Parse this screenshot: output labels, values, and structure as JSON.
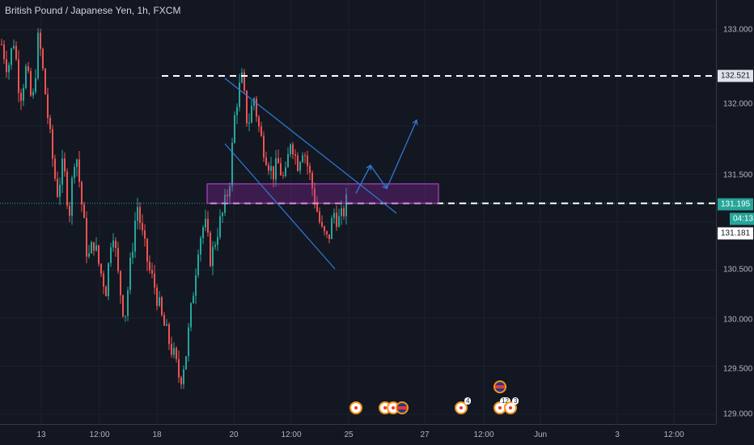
{
  "chart_title": "British Pound / Japanese Yen, 1h, FXCM",
  "colors": {
    "up": "#26a69a",
    "down": "#ef5350",
    "lines": "#2962ff",
    "box": "#9c27b0",
    "bg": "#131722"
  },
  "price_axis_labels": [
    "133.000",
    "132.521",
    "132.000",
    "131.500",
    "131.195",
    "131.181",
    "130.500",
    "130.000",
    "129.500",
    "129.000"
  ],
  "price_tags": {
    "level": "132.521",
    "current": "131.195",
    "timer": "04:13",
    "bid": "131.181"
  },
  "time_axis_labels": [
    "13",
    "12:00",
    "18",
    "20",
    "12:00",
    "25",
    "27",
    "12:00",
    "Jun",
    "3",
    "12:00"
  ],
  "event_counts": [
    "4",
    "12",
    "3"
  ],
  "chart_data": {
    "type": "candlestick",
    "symbol": "British Pound / Japanese Yen",
    "interval": "1h",
    "source": "FXCM",
    "y_range": [
      129.0,
      133.15
    ],
    "y_ticks": [
      133.0,
      132.5,
      132.0,
      131.5,
      131.0,
      130.5,
      130.0,
      129.5,
      129.0
    ],
    "horizontal_levels": [
      132.521,
      131.195
    ],
    "current_price": 131.195,
    "anchor_closes": [
      132.85,
      132.6,
      132.9,
      132.3,
      132.6,
      132.2,
      132.95,
      132.4,
      131.8,
      131.3,
      131.6,
      131.1,
      131.8,
      131.2,
      130.6,
      130.8,
      130.5,
      130.3,
      131.0,
      130.4,
      130.0,
      130.6,
      131.2,
      130.8,
      130.5,
      130.3,
      130.0,
      129.8,
      129.6,
      129.35,
      129.65,
      130.2,
      130.8,
      131.0,
      130.6,
      130.9,
      131.1,
      131.4,
      132.2,
      132.5,
      132.0,
      132.3,
      131.9,
      131.7,
      131.5,
      131.6,
      131.4,
      131.9,
      131.6,
      131.8,
      131.5,
      131.2,
      130.9,
      130.8,
      131.1,
      131.0,
      131.2
    ],
    "demand_zone": {
      "low": 131.195,
      "high": 131.33
    },
    "projected_path": [
      131.3,
      131.59,
      131.35,
      132.06
    ]
  }
}
